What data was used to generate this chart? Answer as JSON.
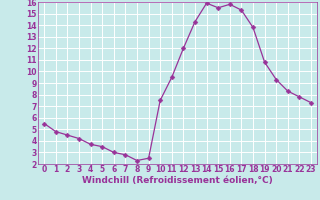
{
  "x": [
    0,
    1,
    2,
    3,
    4,
    5,
    6,
    7,
    8,
    9,
    10,
    11,
    12,
    13,
    14,
    15,
    16,
    17,
    18,
    19,
    20,
    21,
    22,
    23
  ],
  "y": [
    5.5,
    4.8,
    4.5,
    4.2,
    3.7,
    3.5,
    3.0,
    2.8,
    2.3,
    2.5,
    7.5,
    9.5,
    12.0,
    14.3,
    15.9,
    15.5,
    15.8,
    15.3,
    13.8,
    10.8,
    9.3,
    8.3,
    7.8,
    7.3
  ],
  "line_color": "#993399",
  "marker_color": "#993399",
  "bg_color": "#c8eaea",
  "grid_color": "#ffffff",
  "xlabel": "Windchill (Refroidissement éolien,°C)",
  "xlim": [
    -0.5,
    23.5
  ],
  "ylim": [
    2,
    16
  ],
  "yticks": [
    2,
    3,
    4,
    5,
    6,
    7,
    8,
    9,
    10,
    11,
    12,
    13,
    14,
    15,
    16
  ],
  "xticks": [
    0,
    1,
    2,
    3,
    4,
    5,
    6,
    7,
    8,
    9,
    10,
    11,
    12,
    13,
    14,
    15,
    16,
    17,
    18,
    19,
    20,
    21,
    22,
    23
  ],
  "xlabel_color": "#993399",
  "xlabel_fontsize": 6.5,
  "tick_fontsize": 5.5,
  "tick_color": "#993399",
  "linewidth": 0.9,
  "markersize": 2.5
}
